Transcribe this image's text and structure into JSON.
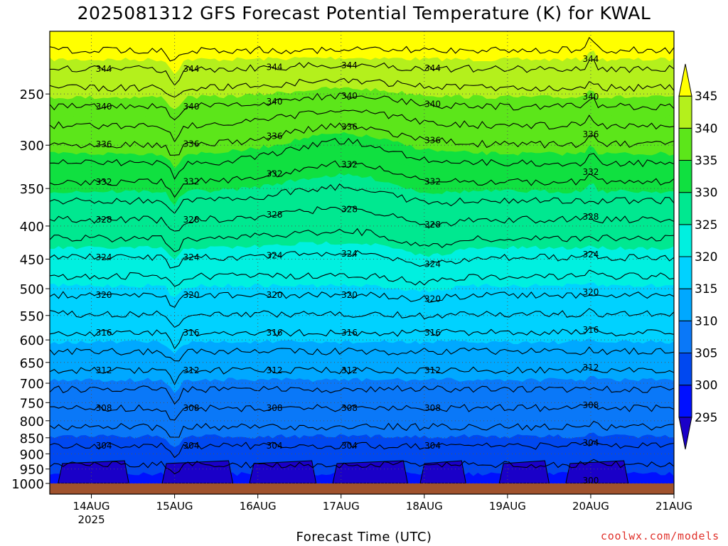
{
  "chart_data": {
    "type": "heatmap",
    "title": "2025081312 GFS Forecast Potential Temperature (K) for KWAL",
    "xlabel": "Forecast Time (UTC)",
    "credit": "coolwx.com/models",
    "x_ticks": [
      {
        "label": "14AUG",
        "sub": "2025",
        "day": 14
      },
      {
        "label": "15AUG",
        "day": 15
      },
      {
        "label": "16AUG",
        "day": 16
      },
      {
        "label": "17AUG",
        "day": 17
      },
      {
        "label": "18AUG",
        "day": 18
      },
      {
        "label": "19AUG",
        "day": 19
      },
      {
        "label": "20AUG",
        "day": 20
      },
      {
        "label": "21AUG",
        "day": 21
      }
    ],
    "x_range_days": [
      13.5,
      21.0
    ],
    "y_ticks": [
      250,
      300,
      350,
      400,
      450,
      500,
      550,
      600,
      650,
      700,
      750,
      800,
      850,
      900,
      950,
      1000
    ],
    "y_range_hpa": [
      200,
      1000
    ],
    "y_scale": "log-pressure",
    "colorbar": {
      "levels": [
        295,
        300,
        305,
        310,
        315,
        320,
        325,
        330,
        335,
        340,
        345
      ],
      "labels": [
        "295",
        "300",
        "305",
        "310",
        "315",
        "320",
        "325",
        "330",
        "335",
        "340",
        "345"
      ],
      "colors": [
        "#1a00c8",
        "#0010ff",
        "#0048f0",
        "#0a78f8",
        "#00a8ff",
        "#00d2ff",
        "#00f0e0",
        "#00e890",
        "#10e040",
        "#5ce61a",
        "#b4f01c",
        "#ffff00"
      ]
    },
    "isotherm_interval": 4,
    "contour_labels": [
      "344",
      "340",
      "336",
      "332",
      "328",
      "324",
      "320",
      "316",
      "312",
      "308",
      "304",
      "300"
    ],
    "contour_label_days": [
      14.15,
      15.2,
      16.2,
      17.1,
      18.1,
      20.0
    ]
  }
}
